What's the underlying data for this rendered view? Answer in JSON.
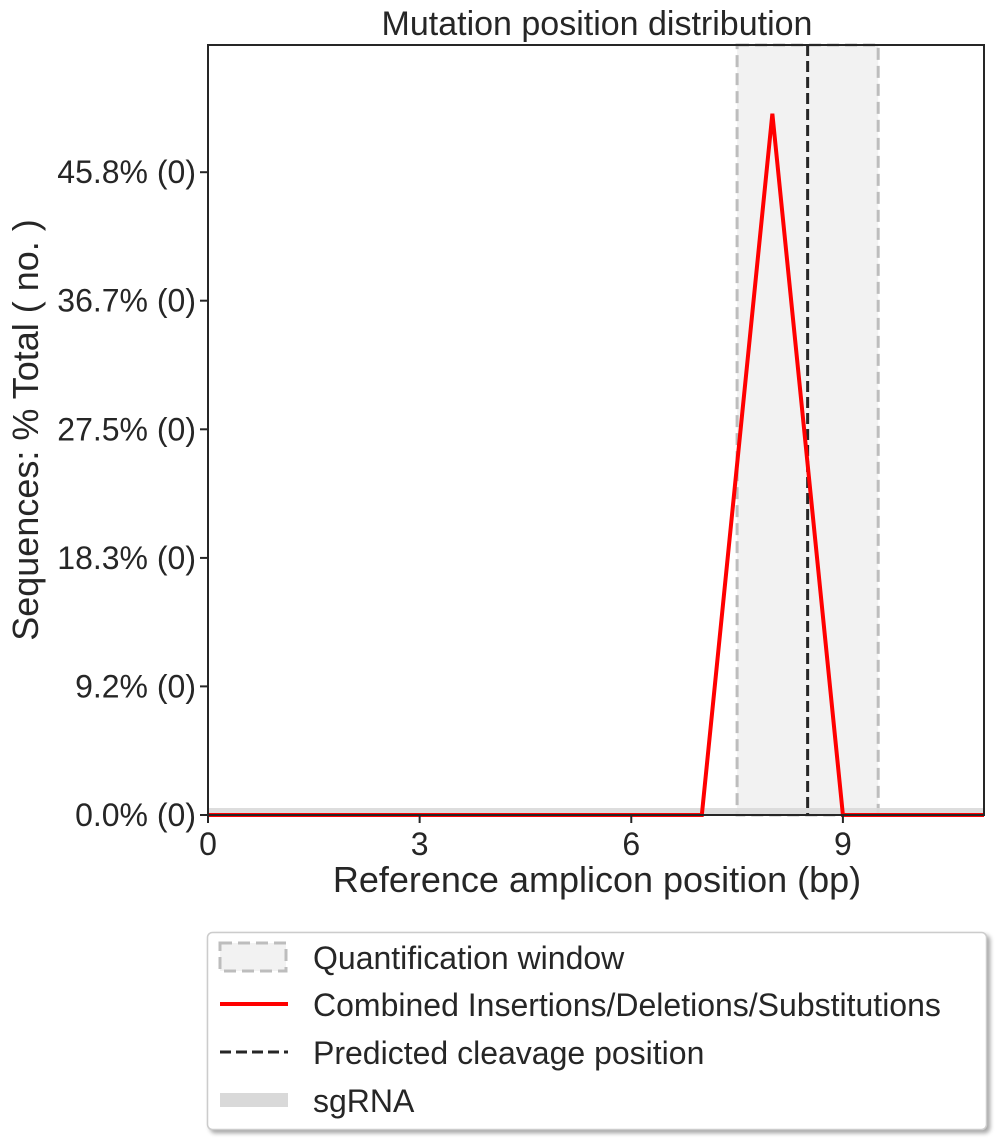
{
  "chart_data": {
    "type": "line",
    "title": "Mutation position distribution",
    "xlabel": "Reference amplicon position (bp)",
    "ylabel": "Sequences: % Total ( no. )",
    "xlim": [
      0,
      11
    ],
    "ylim": [
      0,
      54.9
    ],
    "x_ticks": [
      0,
      3,
      6,
      9
    ],
    "x_tick_labels": [
      "0",
      "3",
      "6",
      "9"
    ],
    "y_ticks": [
      0,
      9.17,
      18.33,
      27.5,
      36.67,
      45.83
    ],
    "y_tick_labels": [
      "0.0% (0)",
      "9.2% (0)",
      "18.3% (0)",
      "27.5% (0)",
      "36.7% (0)",
      "45.8% (0)"
    ],
    "series": [
      {
        "name": "Combined Insertions/Deletions/Substitutions",
        "color": "#ff0000",
        "x": [
          0,
          1,
          2,
          3,
          4,
          5,
          6,
          7,
          8,
          9,
          10,
          11
        ],
        "y": [
          0,
          0,
          0,
          0,
          0,
          0,
          0,
          0,
          50,
          0,
          0,
          0
        ]
      }
    ],
    "quantification_window": {
      "x_start": 7.5,
      "x_end": 9.5,
      "fill": "#f2f2f2",
      "edge": "#bdbdbd"
    },
    "predicted_cleavage_position": 8.5,
    "sgrna": {
      "x_start": 0,
      "x_end": 11,
      "color": "#d9d9d9"
    },
    "grid": false,
    "legend": {
      "placement": "below",
      "entries": [
        {
          "label": "Quantification window",
          "kind": "window"
        },
        {
          "label": "Combined Insertions/Deletions/Substitutions",
          "kind": "line-red"
        },
        {
          "label": "Predicted cleavage position",
          "kind": "line-dashed"
        },
        {
          "label": "sgRNA",
          "kind": "band"
        }
      ]
    }
  }
}
